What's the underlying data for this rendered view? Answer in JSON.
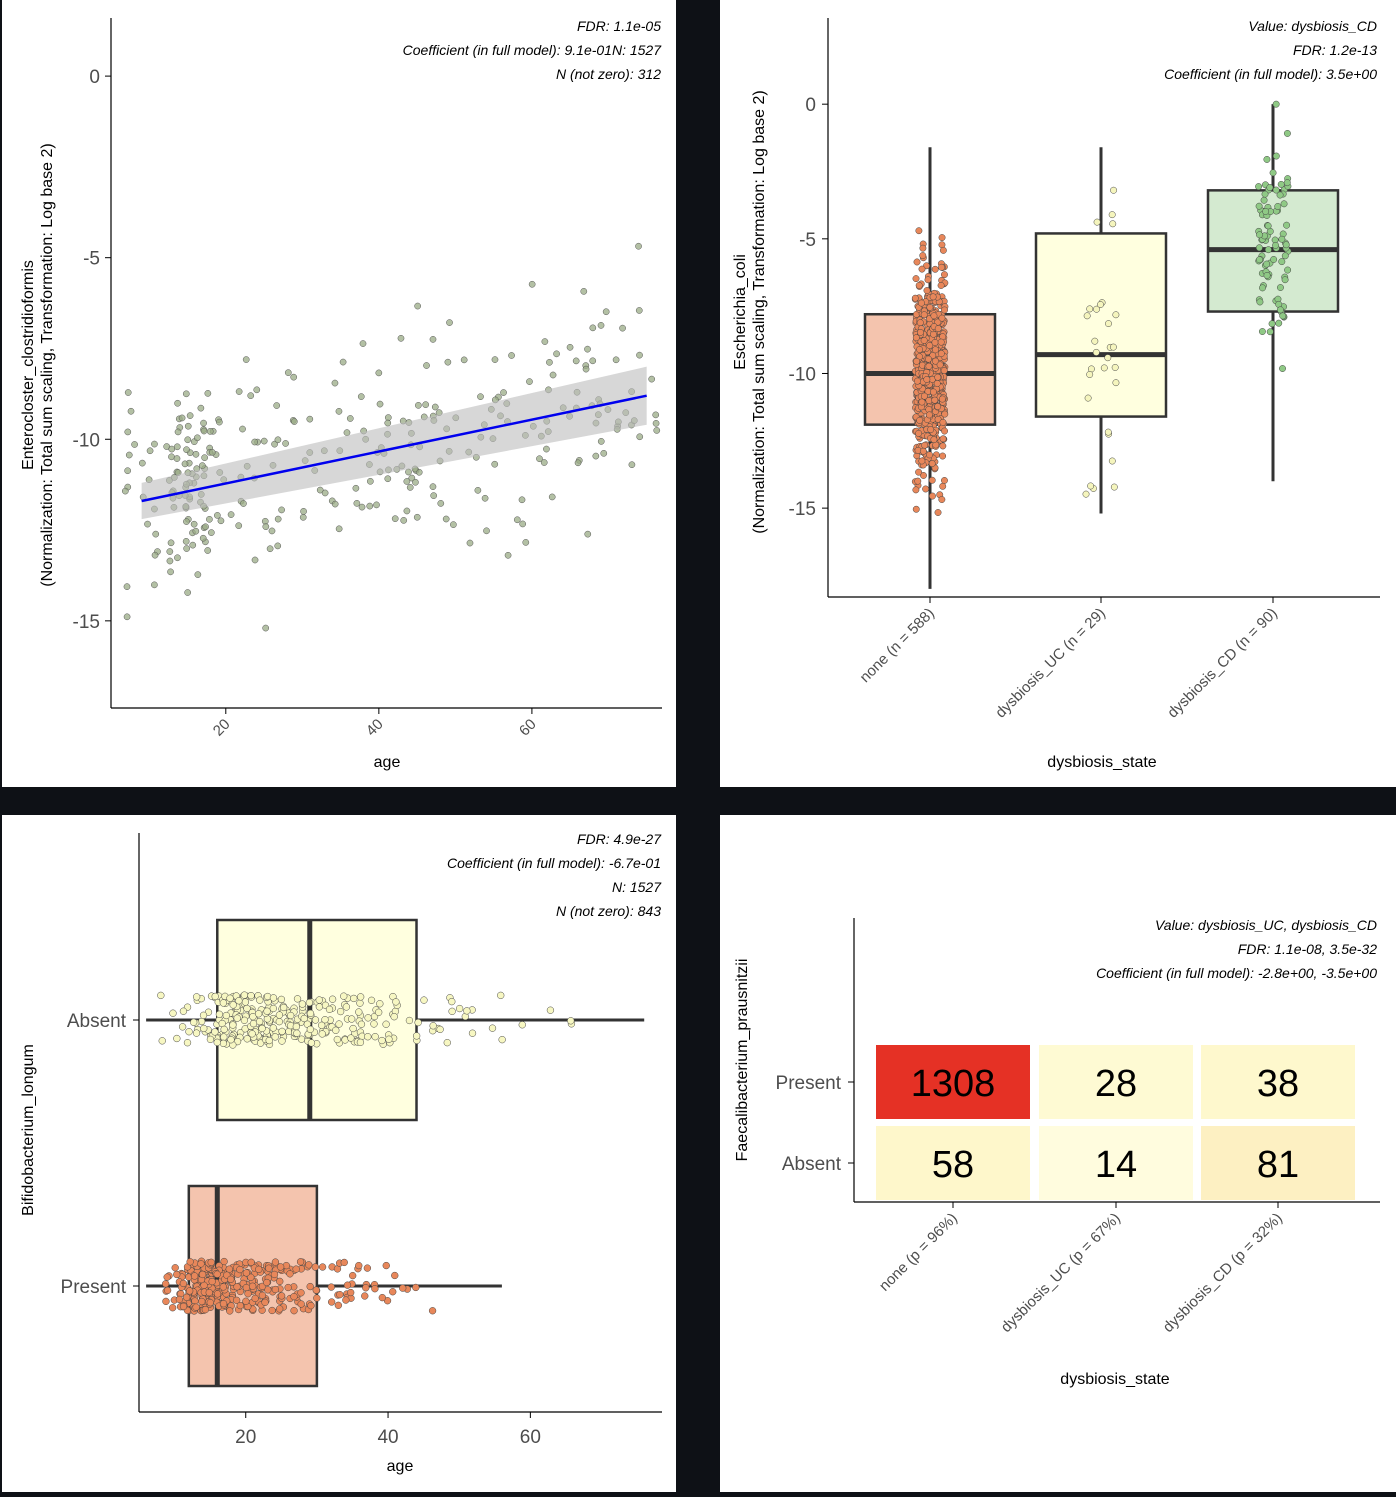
{
  "chart_data": [
    {
      "type": "scatter",
      "title": "",
      "xlabel": "age",
      "ylabel": "Enterocloster_clostridioformis",
      "ylabel2": "(Normalization: Total sum scaling, Transformation: Log base 2)",
      "xlim": [
        5,
        77
      ],
      "ylim": [
        -17.4,
        1.6
      ],
      "xticks": [
        "20",
        "40",
        "60"
      ],
      "yticks": [
        "0",
        "-5",
        "-10",
        "-15"
      ],
      "annotations": [
        "FDR: 1.1e-05",
        "Coefficient (in full model): 9.1e-01N: 1527",
        "N (not zero): 312"
      ],
      "fit_line": {
        "x": [
          9,
          75
        ],
        "y": [
          -11.7,
          -8.8
        ],
        "ci_low": [
          -12.2,
          -9.6
        ],
        "ci_high": [
          -11.2,
          -8.0
        ]
      },
      "point_color": "#9aab86",
      "line_color": "#0000ee",
      "n_points": 312
    },
    {
      "type": "box",
      "xlabel": "dysbiosis_state",
      "ylabel": "Escherichia_coli",
      "ylabel2": "(Normalization: Total sum scaling, Transformation: Log base 2)",
      "ylim": [
        -18.3,
        3.2
      ],
      "yticks": [
        "0",
        "-5",
        "-10",
        "-15"
      ],
      "categories": [
        "none (n = 588)",
        "dysbiosis_UC (n = 29)",
        "dysbiosis_CD (n = 90)"
      ],
      "annotations": [
        "Value: dysbiosis_CD",
        "FDR: 1.2e-13",
        "Coefficient (in full model): 3.5e+00"
      ],
      "boxes": [
        {
          "name": "none",
          "n": 588,
          "min": -18.0,
          "q1": -11.9,
          "median": -10.0,
          "q3": -7.8,
          "max": -1.6,
          "color": "#f4c4ae",
          "point": "#e8875a"
        },
        {
          "name": "dysbiosis_UC",
          "n": 29,
          "min": -15.2,
          "q1": -11.6,
          "median": -9.3,
          "q3": -4.8,
          "max": -1.6,
          "color": "#ffffdf",
          "point": "#f5f5bd"
        },
        {
          "name": "dysbiosis_CD",
          "n": 90,
          "min": -14.0,
          "q1": -7.7,
          "median": -5.4,
          "q3": -3.2,
          "max": 0.0,
          "color": "#d4ead0",
          "point": "#8fc985"
        }
      ]
    },
    {
      "type": "box",
      "orientation": "horizontal",
      "xlabel": "age",
      "ylabel": "Bifidobacterium_longum",
      "xlim": [
        5,
        78.5
      ],
      "xticks": [
        "20",
        "40",
        "60"
      ],
      "categories": [
        "Absent",
        "Present"
      ],
      "annotations": [
        "FDR: 4.9e-27",
        "Coefficient (in full model): -6.7e-01",
        "N: 1527",
        "N (not zero): 843"
      ],
      "boxes": [
        {
          "name": "Absent",
          "min": 6,
          "q1": 16,
          "median": 29,
          "q3": 44,
          "max": 76,
          "color": "#ffffdf",
          "point": "#f7f7c2"
        },
        {
          "name": "Present",
          "min": 6,
          "q1": 12,
          "median": 16,
          "q3": 30,
          "max": 56,
          "color": "#f4c4ae",
          "point": "#e8875a"
        }
      ]
    },
    {
      "type": "heatmap",
      "xlabel": "dysbiosis_state",
      "ylabel": "Faecalibacterium_prausnitzii",
      "categories": [
        "none (p = 96%)",
        "dysbiosis_UC (p = 67%)",
        "dysbiosis_CD (p = 32%)"
      ],
      "rows": [
        "Present",
        "Absent"
      ],
      "values": [
        [
          1308,
          28,
          38
        ],
        [
          58,
          14,
          81
        ]
      ],
      "colors": [
        [
          "#e53125",
          "#fefad3",
          "#fef8cd"
        ],
        [
          "#fef7cb",
          "#fffcde",
          "#fdf0c2"
        ]
      ],
      "annotations": [
        "Value: dysbiosis_UC, dysbiosis_CD",
        "FDR: 1.1e-08, 3.5e-32",
        "Coefficient (in full model): -2.8e+00, -3.5e+00"
      ]
    }
  ]
}
